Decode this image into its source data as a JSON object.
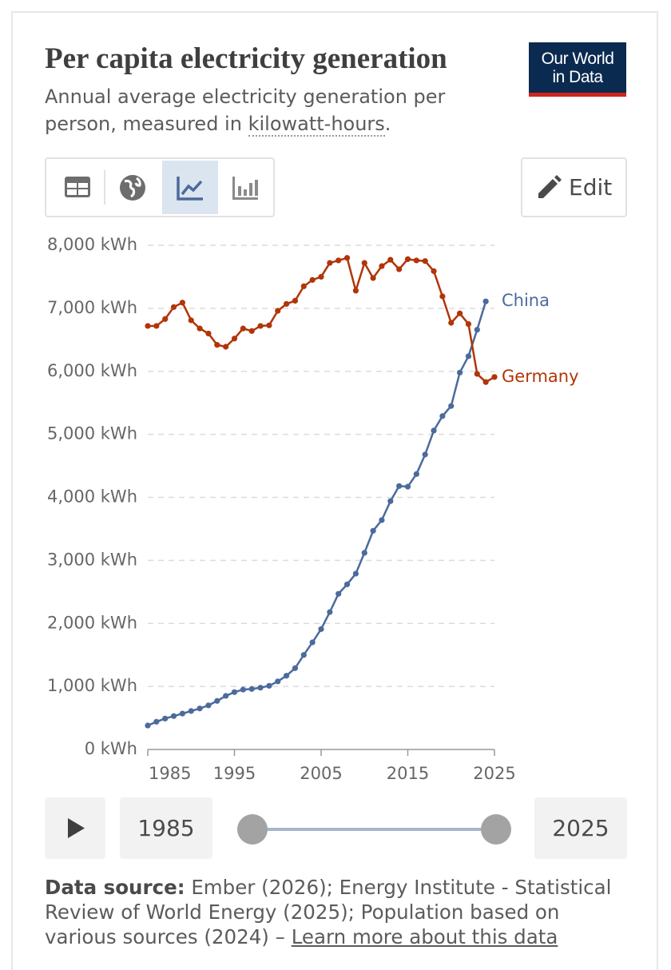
{
  "chart_data": {
    "type": "line",
    "title": "Per capita electricity generation",
    "subtitle": [
      "Annual average electricity generation per person, measured in ",
      "kilowatt-hours",
      "."
    ],
    "x": [
      1985,
      1986,
      1987,
      1988,
      1989,
      1990,
      1991,
      1992,
      1993,
      1994,
      1995,
      1996,
      1997,
      1998,
      1999,
      2000,
      2001,
      2002,
      2003,
      2004,
      2005,
      2006,
      2007,
      2008,
      2009,
      2010,
      2011,
      2012,
      2013,
      2014,
      2015,
      2016,
      2017,
      2018,
      2019,
      2020,
      2021,
      2022,
      2023,
      2024,
      2025
    ],
    "series": [
      {
        "name": "China",
        "color": "#4c6a9c",
        "values": [
          380,
          440,
          490,
          530,
          570,
          610,
          650,
          700,
          770,
          850,
          910,
          950,
          960,
          980,
          1010,
          1080,
          1170,
          1290,
          1500,
          1700,
          1910,
          2180,
          2470,
          2620,
          2790,
          3120,
          3470,
          3640,
          3940,
          4180,
          4170,
          4370,
          4680,
          5060,
          5290,
          5450,
          5980,
          6240,
          6660,
          7110,
          null
        ]
      },
      {
        "name": "Germany",
        "color": "#b13507",
        "values": [
          6720,
          6720,
          6830,
          7020,
          7090,
          6810,
          6680,
          6600,
          6420,
          6390,
          6520,
          6680,
          6640,
          6720,
          6730,
          6960,
          7070,
          7120,
          7350,
          7450,
          7500,
          7720,
          7760,
          7800,
          7280,
          7720,
          7480,
          7670,
          7770,
          7620,
          7780,
          7760,
          7750,
          7590,
          7190,
          6770,
          6920,
          6750,
          5960,
          5830,
          5910
        ]
      }
    ],
    "xlim": [
      1985,
      2025
    ],
    "xticks": [
      1985,
      1995,
      2005,
      2015,
      2025
    ],
    "ylim": [
      0,
      8000
    ],
    "yticks": [
      {
        "value": 0,
        "label": "0 kWh"
      },
      {
        "value": 1000,
        "label": "1,000 kWh"
      },
      {
        "value": 2000,
        "label": "2,000 kWh"
      },
      {
        "value": 3000,
        "label": "3,000 kWh"
      },
      {
        "value": 4000,
        "label": "4,000 kWh"
      },
      {
        "value": 5000,
        "label": "5,000 kWh"
      },
      {
        "value": 6000,
        "label": "6,000 kWh"
      },
      {
        "value": 7000,
        "label": "7,000 kWh"
      },
      {
        "value": 8000,
        "label": "8,000 kWh"
      }
    ],
    "grid": true
  },
  "logo": [
    "Our World",
    "in Data"
  ],
  "toolbar": {
    "edit": "Edit"
  },
  "timeline": {
    "start": "1985",
    "end": "2025"
  },
  "footer": {
    "source_label": "Data source:",
    "source": "Ember (2026); Energy Institute - Statistical Review of World Energy (2025); Population based on various sources (2024) –",
    "link": "Learn more about this data"
  }
}
